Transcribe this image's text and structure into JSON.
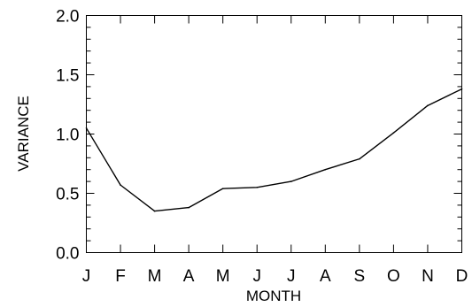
{
  "chart_data": {
    "type": "line",
    "xlabel": "MONTH",
    "ylabel": "VARIANCE",
    "categories": [
      "J",
      "F",
      "M",
      "A",
      "M",
      "J",
      "J",
      "A",
      "S",
      "O",
      "N",
      "D"
    ],
    "series": [
      {
        "values": [
          1.05,
          0.57,
          0.35,
          0.38,
          0.54,
          0.55,
          0.6,
          0.7,
          0.79,
          1.01,
          1.24,
          1.38
        ]
      }
    ],
    "ylim": [
      0.0,
      2.0
    ],
    "yticks": [
      "0.0",
      "0.5",
      "1.0",
      "1.5",
      "2.0"
    ],
    "y_minor_step": 0.1,
    "grid": false,
    "colors": {
      "line": "#000000",
      "frame": "#000000"
    }
  }
}
